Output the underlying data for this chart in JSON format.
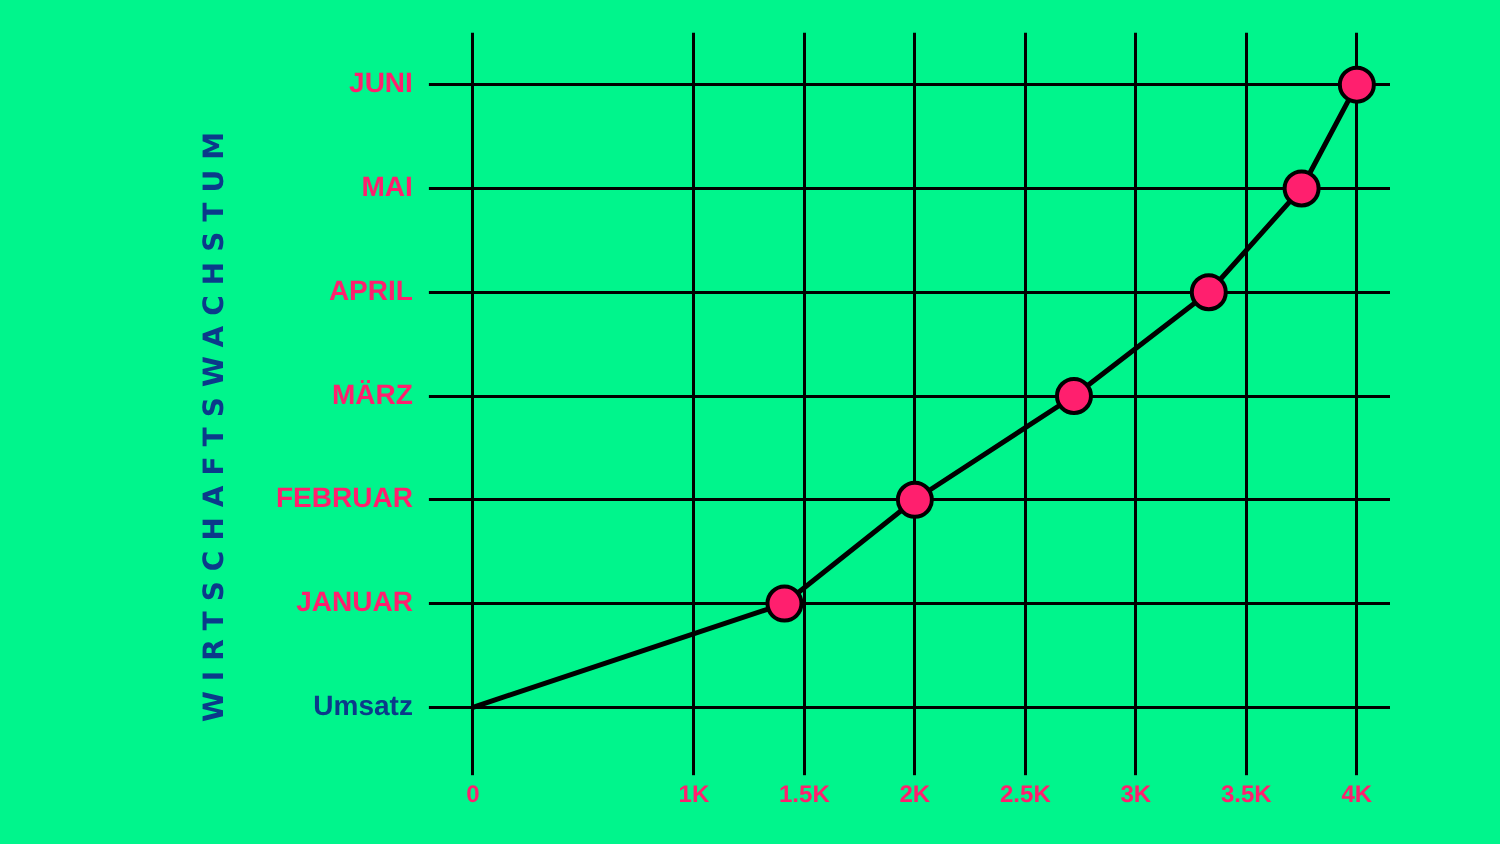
{
  "chart_data": {
    "type": "line",
    "orientation": "horizontal",
    "subtitle": "WIRTSCHAFTSWACHSTUM",
    "categories": [
      "JUNI",
      "MAI",
      "APRIL",
      "MÄRZ",
      "FEBRUAR",
      "JANUAR",
      "Umsatz"
    ],
    "series": [
      {
        "color": "#000000",
        "values": [
          4000,
          3750,
          3330,
          2720,
          2000,
          1410,
          0
        ]
      }
    ],
    "xlim": [
      0,
      4150
    ],
    "xticks": [
      0,
      {
        "value": 1000,
        "label": "1K"
      },
      {
        "value": 1500,
        "label": "1.5K"
      },
      {
        "value": 2000,
        "label": "2K"
      },
      {
        "value": 2500,
        "label": "2.5K"
      },
      {
        "value": 3000,
        "label": "3K"
      },
      {
        "value": 3500,
        "label": "3.5K"
      },
      {
        "value": 4000,
        "label": "4K"
      }
    ],
    "grid": true,
    "legend": false,
    "marker": "circle",
    "line_style": "solid"
  }
}
